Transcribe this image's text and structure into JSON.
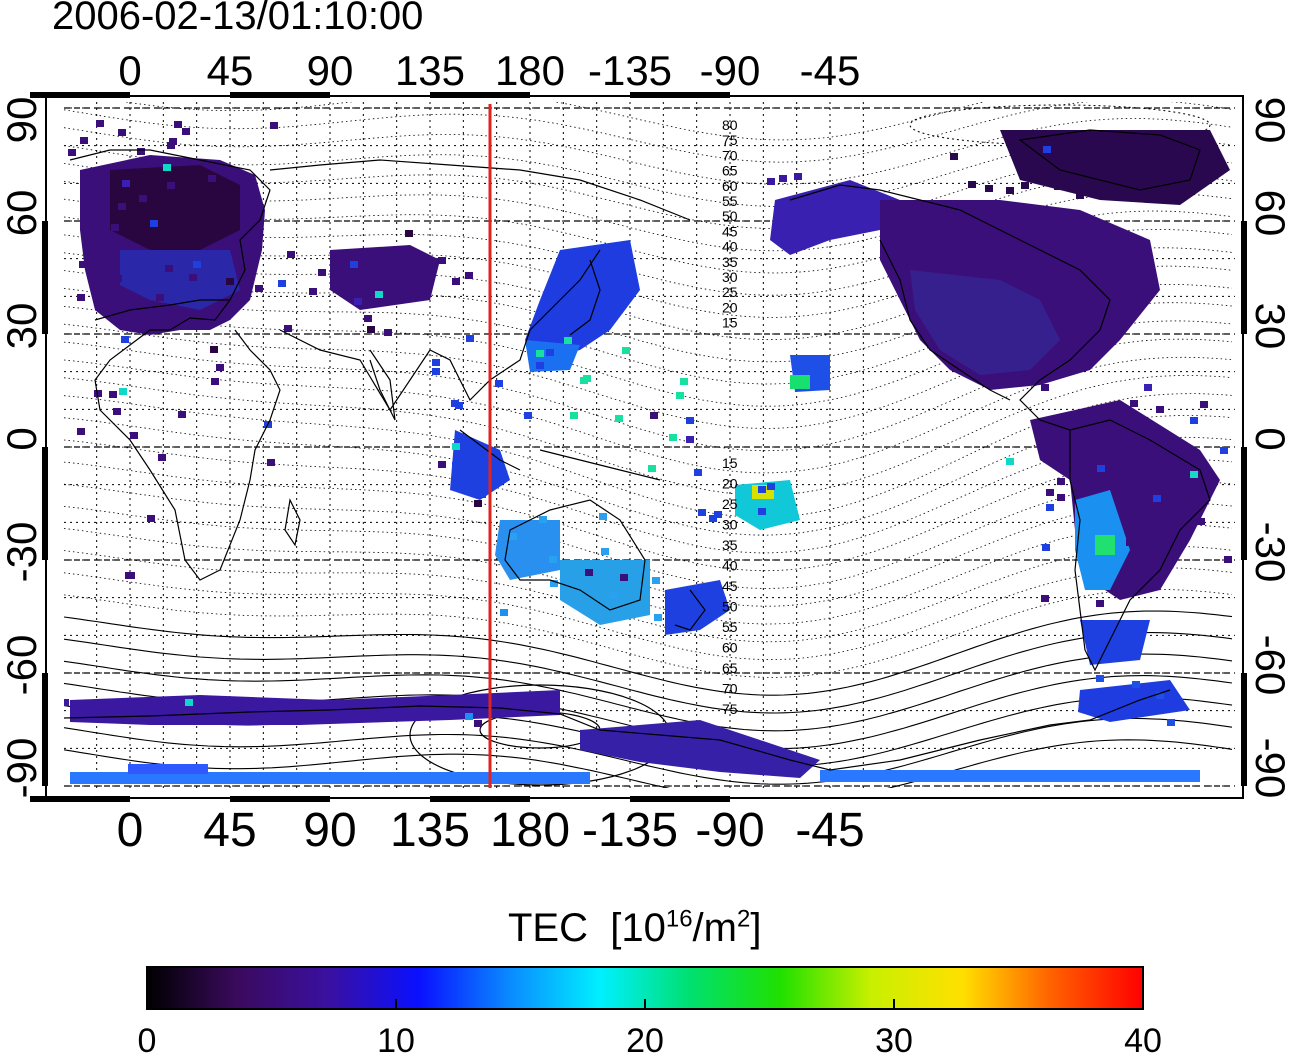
{
  "title": "2006-02-13/01:10:00",
  "map": {
    "lon_ticks": [
      "0",
      "45",
      "90",
      "135",
      "180",
      "-135",
      "-90",
      "-45"
    ],
    "lat_ticks": [
      "90",
      "60",
      "30",
      "0",
      "-30",
      "-60",
      "-90"
    ],
    "meridian_marker_lon": 162,
    "contour_labels_north": [
      "80",
      "75",
      "70",
      "65",
      "60",
      "55",
      "50",
      "45",
      "40",
      "35",
      "30",
      "25",
      "20",
      "15"
    ],
    "contour_labels_south": [
      "15",
      "20",
      "25",
      "30",
      "35",
      "40",
      "45",
      "50",
      "55",
      "60",
      "65",
      "70",
      "75"
    ],
    "colors": {
      "marker": "#e0231c",
      "frame": "#000000"
    }
  },
  "colorbar": {
    "label_text": "TEC",
    "unit_prefix": "[10",
    "unit_exp": "16",
    "unit_mid": "/m",
    "unit_exp2": "2",
    "unit_suffix": "]",
    "ticks": [
      "0",
      "10",
      "20",
      "30",
      "40"
    ],
    "range": [
      0,
      40
    ],
    "stops": [
      "#000000",
      "#3b0a5e",
      "#3a10a0",
      "#0a10ff",
      "#0a8aff",
      "#00f0ff",
      "#00e070",
      "#20e000",
      "#c8f000",
      "#ffe000",
      "#ff6000",
      "#ff0000"
    ]
  }
}
